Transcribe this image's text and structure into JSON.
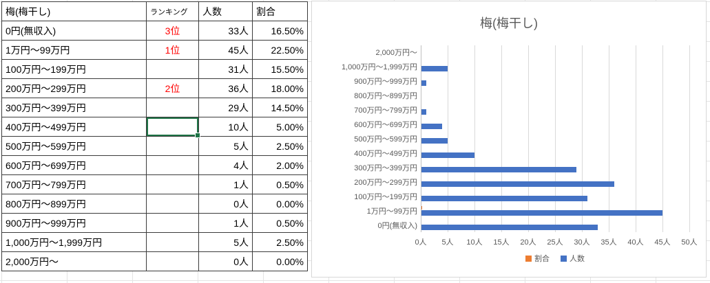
{
  "table": {
    "headers": [
      "梅(梅干し)",
      "ランキング",
      "人数",
      "割合"
    ],
    "rows": [
      {
        "label": "0円(無収入)",
        "rank": "3位",
        "count": "33人",
        "pct": "16.50%",
        "selected": false
      },
      {
        "label": "1万円〜99万円",
        "rank": "1位",
        "count": "45人",
        "pct": "22.50%",
        "selected": false
      },
      {
        "label": "100万円〜199万円",
        "rank": "",
        "count": "31人",
        "pct": "15.50%",
        "selected": false
      },
      {
        "label": "200万円〜299万円",
        "rank": "2位",
        "count": "36人",
        "pct": "18.00%",
        "selected": false
      },
      {
        "label": "300万円〜399万円",
        "rank": "",
        "count": "29人",
        "pct": "14.50%",
        "selected": false
      },
      {
        "label": "400万円〜499万円",
        "rank": "",
        "count": "10人",
        "pct": "5.00%",
        "selected": true
      },
      {
        "label": "500万円〜599万円",
        "rank": "",
        "count": "5人",
        "pct": "2.50%",
        "selected": false
      },
      {
        "label": "600万円〜699万円",
        "rank": "",
        "count": "4人",
        "pct": "2.00%",
        "selected": false
      },
      {
        "label": "700万円〜799万円",
        "rank": "",
        "count": "1人",
        "pct": "0.50%",
        "selected": false
      },
      {
        "label": "800万円〜899万円",
        "rank": "",
        "count": "0人",
        "pct": "0.00%",
        "selected": false
      },
      {
        "label": "900万円〜999万円",
        "rank": "",
        "count": "1人",
        "pct": "0.50%",
        "selected": false
      },
      {
        "label": "1,000万円〜1,999万円",
        "rank": "",
        "count": "5人",
        "pct": "2.50%",
        "selected": false
      },
      {
        "label": "2,000万円〜",
        "rank": "",
        "count": "0人",
        "pct": "0.00%",
        "selected": false
      }
    ]
  },
  "chart_data": {
    "type": "bar",
    "orientation": "horizontal",
    "title": "梅(梅干し)",
    "categories": [
      "2,000万円〜",
      "1,000万円〜1,999万円",
      "900万円〜999万円",
      "800万円〜899万円",
      "700万円〜799万円",
      "600万円〜699万円",
      "500万円〜599万円",
      "400万円〜499万円",
      "300万円〜399万円",
      "200万円〜299万円",
      "100万円〜199万円",
      "1万円〜99万円",
      "0円(無収入)"
    ],
    "series": [
      {
        "name": "割合",
        "color": "#ed7d31",
        "values": [
          0.0,
          0.025,
          0.005,
          0.0,
          0.005,
          0.02,
          0.025,
          0.05,
          0.145,
          0.18,
          0.155,
          0.225,
          0.165
        ]
      },
      {
        "name": "人数",
        "color": "#4472c4",
        "values": [
          0,
          5,
          1,
          0,
          1,
          4,
          5,
          10,
          29,
          36,
          31,
          45,
          33
        ]
      }
    ],
    "x_ticks": [
      "0人",
      "5人",
      "10人",
      "15人",
      "20人",
      "25人",
      "30人",
      "35人",
      "40人",
      "45人",
      "50人"
    ],
    "xlim": [
      0,
      50
    ],
    "grid": true,
    "legend_position": "bottom"
  },
  "colors": {
    "bar_count": "#4472c4",
    "bar_ratio": "#ed7d31",
    "rank_text": "#ff0000",
    "selection": "#1e7446",
    "chart_text": "#595959",
    "gridline": "#d9d9d9"
  }
}
